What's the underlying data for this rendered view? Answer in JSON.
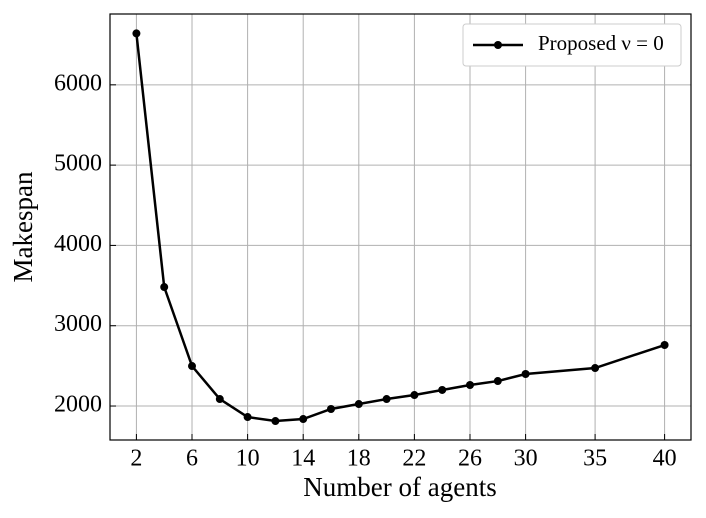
{
  "chart_data": {
    "type": "line",
    "x_label": "Number of agents",
    "y_label": "Makespan",
    "x": [
      2,
      4,
      6,
      8,
      10,
      12,
      14,
      16,
      18,
      20,
      22,
      24,
      26,
      28,
      30,
      35,
      40
    ],
    "series": [
      {
        "name": "Proposed ν = 0",
        "color": "#000000",
        "values": [
          6640,
          3482,
          2498,
          2087,
          1863,
          1813,
          1838,
          1963,
          2025,
          2087,
          2137,
          2200,
          2262,
          2311,
          2399,
          2473,
          2760
        ]
      }
    ],
    "xlim": [
      0.1,
      41.9
    ],
    "xticks": [
      2,
      6,
      10,
      14,
      18,
      22,
      26,
      30,
      35,
      40
    ],
    "ylim": [
      1577,
      6882
    ],
    "yticks": [
      2000,
      3000,
      4000,
      5000,
      6000
    ],
    "grid": true,
    "legend": "upper right"
  }
}
